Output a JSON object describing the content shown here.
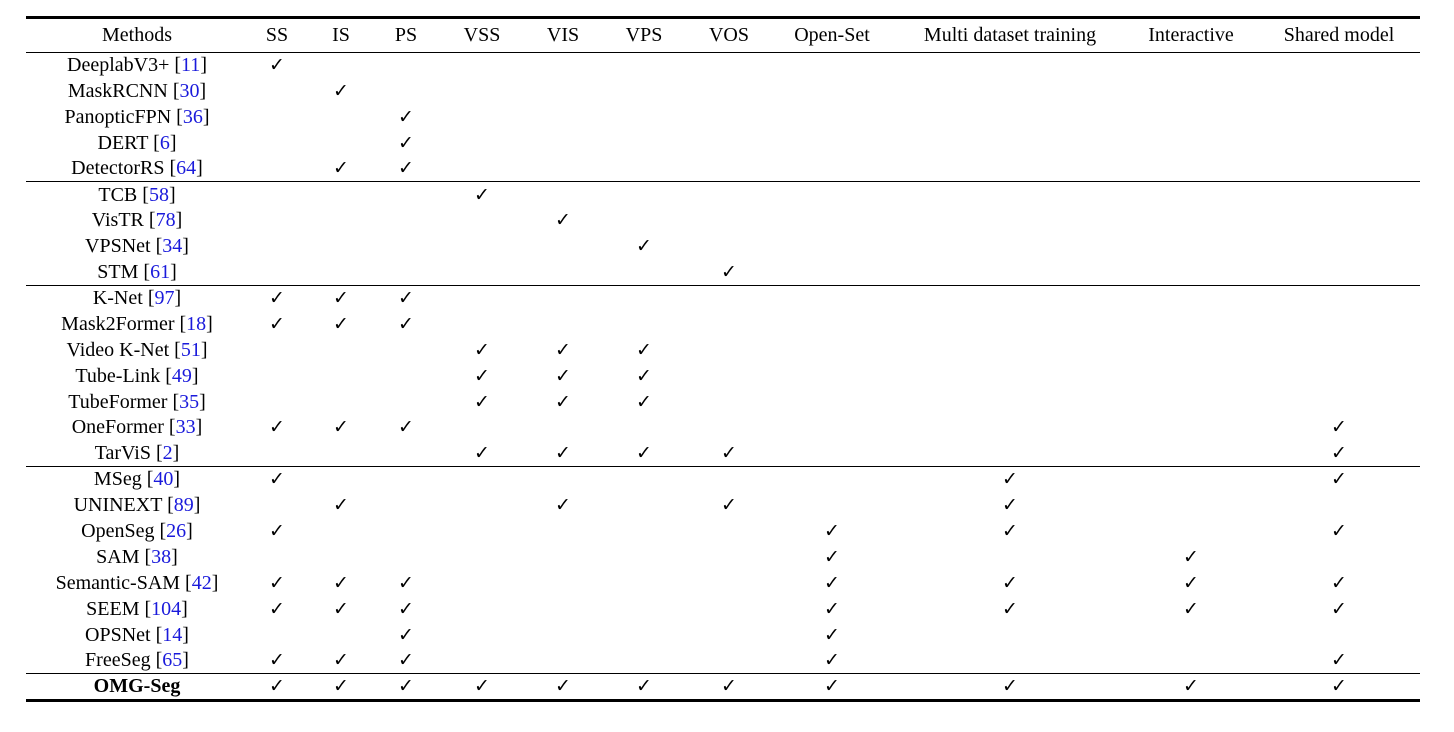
{
  "check_glyph": "✓",
  "columns": [
    "Methods",
    "SS",
    "IS",
    "PS",
    "VSS",
    "VIS",
    "VPS",
    "VOS",
    "Open-Set",
    "Multi dataset training",
    "Interactive",
    "Shared model"
  ],
  "groups": [
    [
      {
        "name": "DeeplabV3+",
        "ref": "11",
        "marks": [
          1,
          0,
          0,
          0,
          0,
          0,
          0,
          0,
          0,
          0,
          0
        ]
      },
      {
        "name": "MaskRCNN",
        "ref": "30",
        "marks": [
          0,
          1,
          0,
          0,
          0,
          0,
          0,
          0,
          0,
          0,
          0
        ]
      },
      {
        "name": "PanopticFPN",
        "ref": "36",
        "marks": [
          0,
          0,
          1,
          0,
          0,
          0,
          0,
          0,
          0,
          0,
          0
        ]
      },
      {
        "name": "DERT",
        "ref": "6",
        "marks": [
          0,
          0,
          1,
          0,
          0,
          0,
          0,
          0,
          0,
          0,
          0
        ]
      },
      {
        "name": "DetectorRS",
        "ref": "64",
        "marks": [
          0,
          1,
          1,
          0,
          0,
          0,
          0,
          0,
          0,
          0,
          0
        ]
      }
    ],
    [
      {
        "name": "TCB",
        "ref": "58",
        "marks": [
          0,
          0,
          0,
          1,
          0,
          0,
          0,
          0,
          0,
          0,
          0
        ]
      },
      {
        "name": "VisTR",
        "ref": "78",
        "marks": [
          0,
          0,
          0,
          0,
          1,
          0,
          0,
          0,
          0,
          0,
          0
        ]
      },
      {
        "name": "VPSNet",
        "ref": "34",
        "marks": [
          0,
          0,
          0,
          0,
          0,
          1,
          0,
          0,
          0,
          0,
          0
        ]
      },
      {
        "name": "STM",
        "ref": "61",
        "marks": [
          0,
          0,
          0,
          0,
          0,
          0,
          1,
          0,
          0,
          0,
          0
        ]
      }
    ],
    [
      {
        "name": "K-Net",
        "ref": "97",
        "marks": [
          1,
          1,
          1,
          0,
          0,
          0,
          0,
          0,
          0,
          0,
          0
        ]
      },
      {
        "name": "Mask2Former",
        "ref": "18",
        "marks": [
          1,
          1,
          1,
          0,
          0,
          0,
          0,
          0,
          0,
          0,
          0
        ]
      },
      {
        "name": "Video K-Net",
        "ref": "51",
        "marks": [
          0,
          0,
          0,
          1,
          1,
          1,
          0,
          0,
          0,
          0,
          0
        ]
      },
      {
        "name": "Tube-Link",
        "ref": "49",
        "marks": [
          0,
          0,
          0,
          1,
          1,
          1,
          0,
          0,
          0,
          0,
          0
        ]
      },
      {
        "name": "TubeFormer",
        "ref": "35",
        "marks": [
          0,
          0,
          0,
          1,
          1,
          1,
          0,
          0,
          0,
          0,
          0
        ]
      },
      {
        "name": "OneFormer",
        "ref": "33",
        "marks": [
          1,
          1,
          1,
          0,
          0,
          0,
          0,
          0,
          0,
          0,
          1
        ]
      },
      {
        "name": "TarViS",
        "ref": "2",
        "marks": [
          0,
          0,
          0,
          1,
          1,
          1,
          1,
          0,
          0,
          0,
          1
        ]
      }
    ],
    [
      {
        "name": "MSeg",
        "ref": "40",
        "marks": [
          1,
          0,
          0,
          0,
          0,
          0,
          0,
          0,
          1,
          0,
          1
        ]
      },
      {
        "name": "UNINEXT",
        "ref": "89",
        "marks": [
          0,
          1,
          0,
          0,
          1,
          0,
          1,
          0,
          1,
          0,
          0
        ]
      },
      {
        "name": "OpenSeg",
        "ref": "26",
        "marks": [
          1,
          0,
          0,
          0,
          0,
          0,
          0,
          1,
          1,
          0,
          1
        ]
      },
      {
        "name": "SAM",
        "ref": "38",
        "marks": [
          0,
          0,
          0,
          0,
          0,
          0,
          0,
          1,
          0,
          1,
          0
        ]
      },
      {
        "name": "Semantic-SAM",
        "ref": "42",
        "marks": [
          1,
          1,
          1,
          0,
          0,
          0,
          0,
          1,
          1,
          1,
          1
        ]
      },
      {
        "name": "SEEM",
        "ref": "104",
        "marks": [
          1,
          1,
          1,
          0,
          0,
          0,
          0,
          1,
          1,
          1,
          1
        ]
      },
      {
        "name": "OPSNet",
        "ref": "14",
        "marks": [
          0,
          0,
          1,
          0,
          0,
          0,
          0,
          1,
          0,
          0,
          0
        ]
      },
      {
        "name": "FreeSeg",
        "ref": "65",
        "marks": [
          1,
          1,
          1,
          0,
          0,
          0,
          0,
          1,
          0,
          0,
          1
        ]
      }
    ],
    [
      {
        "name": "OMG-Seg",
        "ref": "",
        "bold": true,
        "marks": [
          1,
          1,
          1,
          1,
          1,
          1,
          1,
          1,
          1,
          1,
          1
        ]
      }
    ]
  ]
}
